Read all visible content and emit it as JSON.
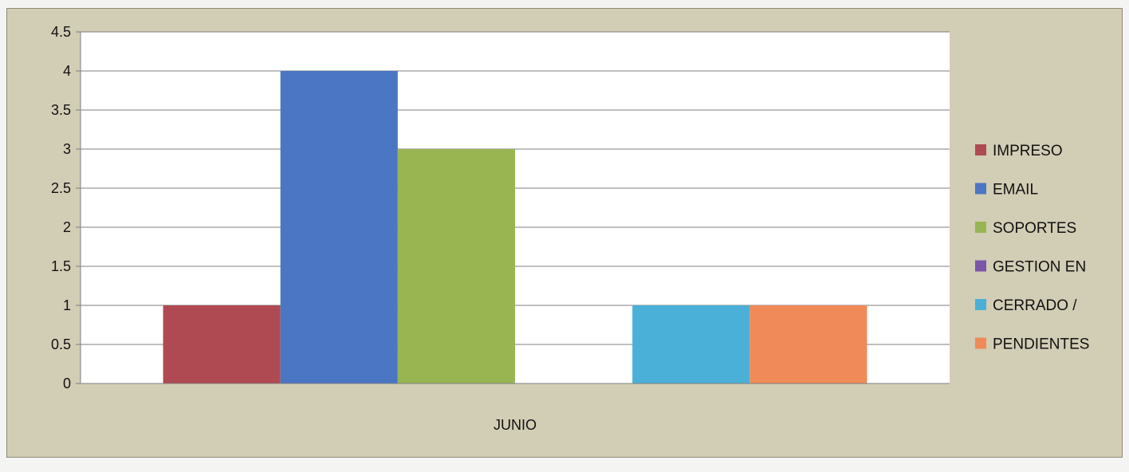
{
  "chart_data": {
    "type": "bar",
    "title": "",
    "xlabel": "",
    "ylabel": "",
    "categories": [
      "JUNIO"
    ],
    "ylim": [
      0,
      4.5
    ],
    "yticks": [
      0,
      0.5,
      1,
      1.5,
      2,
      2.5,
      3,
      3.5,
      4,
      4.5
    ],
    "ytick_labels": [
      "0",
      "0.5",
      "1",
      "1.5",
      "2",
      "2.5",
      "3",
      "3.5",
      "4",
      "4.5"
    ],
    "grid": true,
    "legend_position": "right",
    "series": [
      {
        "name": "IMPRESO",
        "values": [
          1
        ],
        "color": "#b04a52"
      },
      {
        "name": "EMAIL",
        "values": [
          4
        ],
        "color": "#4a76c4"
      },
      {
        "name": "SOPORTES",
        "values": [
          3
        ],
        "color": "#98b552"
      },
      {
        "name": "GESTION EN",
        "values": [
          0
        ],
        "color": "#7a55a8"
      },
      {
        "name": "CERRADO /",
        "values": [
          1
        ],
        "color": "#4ab0d8"
      },
      {
        "name": "PENDIENTES",
        "values": [
          1
        ],
        "color": "#f08a58"
      }
    ]
  }
}
